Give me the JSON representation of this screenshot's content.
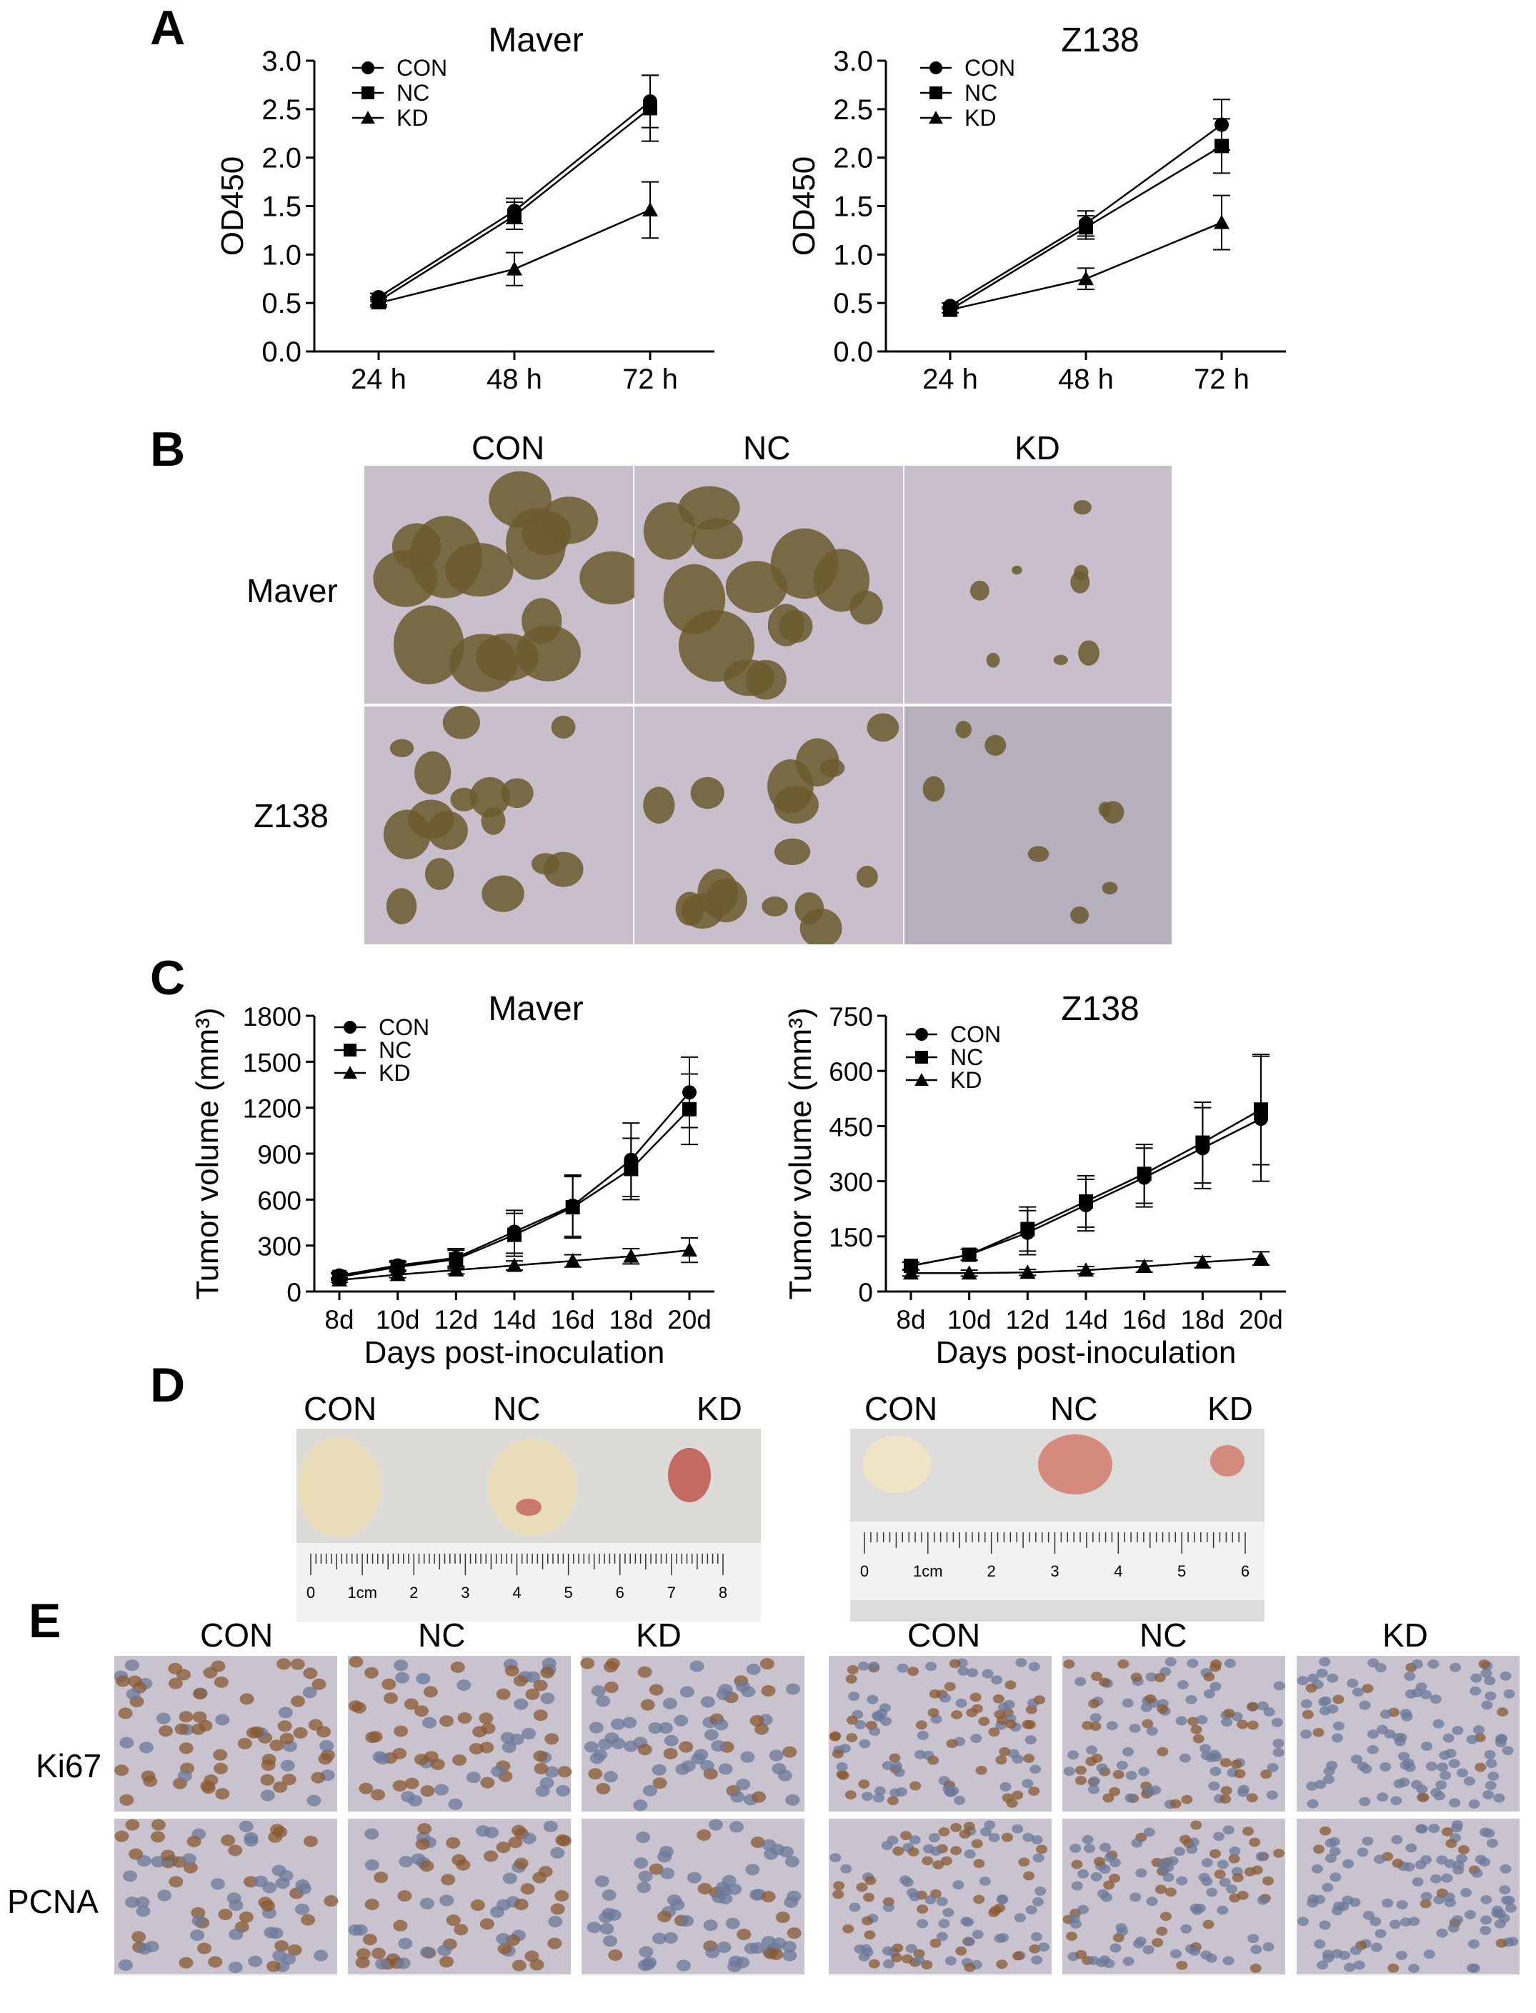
{
  "panels": {
    "A": "A",
    "B": "B",
    "C": "C",
    "D": "D",
    "E": "E"
  },
  "panel_b": {
    "columns": [
      "CON",
      "NC",
      "KD"
    ],
    "rows": [
      "Maver",
      "Z138"
    ]
  },
  "panel_d": {
    "left_labels": [
      "CON",
      "NC",
      "KD"
    ],
    "right_labels": [
      "CON",
      "NC",
      "KD"
    ],
    "ruler_left": [
      "0",
      "1cm",
      "2",
      "3",
      "4",
      "5",
      "6",
      "7",
      "8"
    ],
    "ruler_right": [
      "0",
      "1cm",
      "2",
      "3",
      "4",
      "5",
      "6"
    ]
  },
  "panel_e": {
    "columns": [
      "CON",
      "NC",
      "KD",
      "CON",
      "NC",
      "KD"
    ],
    "rows": [
      "Ki67",
      "PCNA"
    ]
  },
  "colors": {
    "line": "#000000",
    "colony_bg": "#c9bfcc",
    "colony": "#6b5a2e",
    "tissue_bg": "#c8c3cf",
    "nucleus_brown": "#8a5a32",
    "nucleus_blue": "#6b7a99",
    "tumor": "#e9dcb8",
    "tumor_red": "#b33a3a",
    "ruler": "#f2f2f2"
  },
  "chart_data": [
    {
      "id": "A-maver",
      "type": "line",
      "title": "Maver",
      "xlabel": "",
      "ylabel": "OD450",
      "categories": [
        "24 h",
        "48 h",
        "72 h"
      ],
      "yticks": [
        "0.0",
        "0.5",
        "1.0",
        "1.5",
        "2.0",
        "2.5",
        "3.0"
      ],
      "ylim": [
        0,
        3
      ],
      "series": [
        {
          "name": "CON",
          "marker": "circle",
          "values": [
            0.56,
            1.45,
            2.58
          ],
          "err": [
            0.04,
            0.13,
            0.27
          ]
        },
        {
          "name": "NC",
          "marker": "square",
          "values": [
            0.52,
            1.4,
            2.51
          ],
          "err": [
            0.04,
            0.14,
            0.34
          ]
        },
        {
          "name": "KD",
          "marker": "triangle",
          "values": [
            0.5,
            0.85,
            1.46
          ],
          "err": [
            0.04,
            0.17,
            0.29
          ]
        }
      ]
    },
    {
      "id": "A-z138",
      "type": "line",
      "title": "Z138",
      "xlabel": "",
      "ylabel": "OD450",
      "categories": [
        "24 h",
        "48 h",
        "72 h"
      ],
      "yticks": [
        "0.0",
        "0.5",
        "1.0",
        "1.5",
        "2.0",
        "2.5",
        "3.0"
      ],
      "ylim": [
        0,
        3
      ],
      "series": [
        {
          "name": "CON",
          "marker": "circle",
          "values": [
            0.47,
            1.32,
            2.34
          ],
          "err": [
            0.03,
            0.13,
            0.26
          ]
        },
        {
          "name": "NC",
          "marker": "square",
          "values": [
            0.43,
            1.28,
            2.12
          ],
          "err": [
            0.03,
            0.12,
            0.28
          ]
        },
        {
          "name": "KD",
          "marker": "triangle",
          "values": [
            0.43,
            0.75,
            1.33
          ],
          "err": [
            0.03,
            0.11,
            0.28
          ]
        }
      ]
    },
    {
      "id": "C-maver",
      "type": "line",
      "title": "Maver",
      "xlabel": "Days post-inoculation",
      "ylabel": "Tumor volume (mm³)",
      "categories": [
        "8d",
        "10d",
        "12d",
        "14d",
        "16d",
        "18d",
        "20d"
      ],
      "yticks": [
        "0",
        "300",
        "600",
        "900",
        "1200",
        "1500",
        "1800"
      ],
      "ylim": [
        0,
        1800
      ],
      "series": [
        {
          "name": "CON",
          "marker": "circle",
          "values": [
            105,
            170,
            220,
            390,
            560,
            860,
            1300
          ],
          "err": [
            20,
            30,
            60,
            140,
            200,
            240,
            230
          ]
        },
        {
          "name": "NC",
          "marker": "square",
          "values": [
            95,
            160,
            210,
            370,
            550,
            800,
            1190
          ],
          "err": [
            20,
            30,
            60,
            140,
            200,
            200,
            230
          ]
        },
        {
          "name": "KD",
          "marker": "triangle",
          "values": [
            75,
            110,
            140,
            170,
            200,
            230,
            270
          ],
          "err": [
            15,
            20,
            25,
            30,
            40,
            50,
            80
          ]
        }
      ]
    },
    {
      "id": "C-z138",
      "type": "line",
      "title": "Z138",
      "xlabel": "Days post-inoculation",
      "ylabel": "Tumor volume (mm³)",
      "categories": [
        "8d",
        "10d",
        "12d",
        "14d",
        "16d",
        "18d",
        "20d"
      ],
      "yticks": [
        "0",
        "150",
        "300",
        "450",
        "600",
        "750"
      ],
      "ylim": [
        0,
        750
      ],
      "series": [
        {
          "name": "CON",
          "marker": "circle",
          "values": [
            70,
            100,
            160,
            235,
            310,
            390,
            470
          ],
          "err": [
            10,
            15,
            60,
            70,
            80,
            110,
            170
          ]
        },
        {
          "name": "NC",
          "marker": "square",
          "values": [
            70,
            100,
            170,
            245,
            320,
            405,
            495
          ],
          "err": [
            10,
            15,
            60,
            70,
            80,
            110,
            150
          ]
        },
        {
          "name": "KD",
          "marker": "triangle",
          "values": [
            50,
            50,
            52,
            58,
            68,
            80,
            90
          ],
          "err": [
            8,
            8,
            8,
            10,
            15,
            15,
            18
          ]
        }
      ]
    }
  ]
}
